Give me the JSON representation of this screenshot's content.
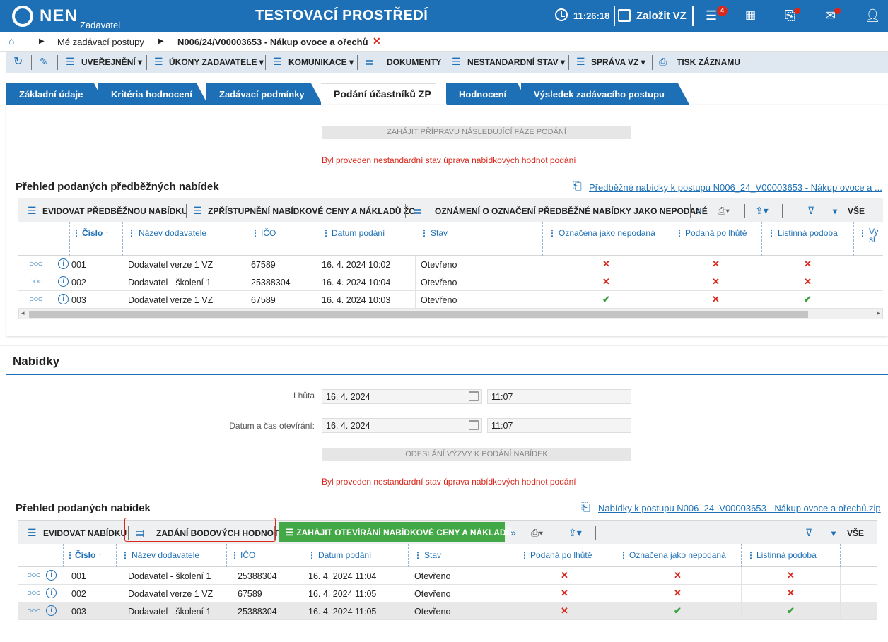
{
  "header": {
    "logo_text": "NEN",
    "logo_sub": "Zadavatel",
    "env_title": "TESTOVACÍ PROSTŘEDÍ",
    "time": "11:26:18",
    "create_label": "Založit VZ",
    "menu_badge": "4"
  },
  "breadcrumb": {
    "items": [
      "Mé zadávací postupy",
      "N006/24/V00003653 - Nákup ovoce a ořechů"
    ],
    "close": "✕"
  },
  "toolbar": {
    "items": [
      "UVEŘEJNĚNÍ",
      "ÚKONY ZADAVATELE",
      "KOMUNIKACE",
      "DOKUMENTY",
      "NESTANDARDNÍ STAV",
      "SPRÁVA VZ",
      "TISK ZÁZNAMU"
    ]
  },
  "tabs": [
    "Základní údaje",
    "Kritéria hodnocení",
    "Zadávací podmínky",
    "Podání účastníků ZP",
    "Hodnocení",
    "Výsledek zadávacího postupu"
  ],
  "prelim": {
    "next_phase_btn": "ZAHÁJIT PŘÍPRAVU NÁSLEDUJÍCÍ FÁZE PODÁNÍ",
    "warning": "Byl proveden nestandardní stav úprava nabídkových hodnot podání",
    "title": "Přehled podaných předběžných nabídek",
    "download_link": "Předběžné nabídky k postupu N006_24_V00003653 - Nákup ovoce a ...",
    "tools": [
      "EVIDOVAT PŘEDBĚŽNOU NABÍDKU",
      "ZPŘÍSTUPNĚNÍ NABÍDKOVÉ CENY A NÁKLADŮ ŽC",
      "OZNÁMENÍ O OZNAČENÍ PŘEDBĚŽNÉ NABÍDKY JAKO NEPODANÉ"
    ],
    "all_label": "VŠE",
    "columns": [
      "Číslo",
      "Název dodavatele",
      "IČO",
      "Datum podání",
      "Stav",
      "Označena jako nepodaná",
      "Podaná po lhůtě",
      "Listinná podoba",
      "Vy sl"
    ],
    "rows": [
      {
        "num": "001",
        "name": "Dodavatel verze 1 VZ",
        "ico": "67589",
        "date": "16. 4. 2024 10:02",
        "state": "Otevřeno",
        "flags": [
          false,
          false,
          false
        ]
      },
      {
        "num": "002",
        "name": "Dodavatel - školení 1",
        "ico": "25388304",
        "date": "16. 4. 2024 10:04",
        "state": "Otevřeno",
        "flags": [
          false,
          false,
          false
        ]
      },
      {
        "num": "003",
        "name": "Dodavatel verze 1 VZ",
        "ico": "67589",
        "date": "16. 4. 2024 10:03",
        "state": "Otevřeno",
        "flags": [
          true,
          false,
          true
        ]
      }
    ]
  },
  "offers": {
    "section_title": "Nabídky",
    "deadline_label": "Lhůta",
    "deadline_date": "16. 4. 2024",
    "deadline_time": "11:07",
    "open_label": "Datum a čas otevírání:",
    "open_date": "16. 4. 2024",
    "open_time": "11:07",
    "send_btn": "ODESLÁNÍ VÝZVY K PODÁNÍ NABÍDEK",
    "warning": "Byl proveden nestandardní stav úprava nabídkových hodnot podání",
    "title": "Přehled podaných nabídek",
    "download_link": "Nabídky k postupu N006_24_V00003653 - Nákup ovoce a ořechů.zip",
    "tools": [
      "EVIDOVAT NABÍDKU",
      "ZADÁNÍ BODOVÝCH HODNOT",
      "ZAHÁJIT OTEVÍRÁNÍ NABÍDKOVÉ CENY A NÁKLADŮ"
    ],
    "all_label": "VŠE",
    "columns": [
      "Číslo",
      "Název dodavatele",
      "IČO",
      "Datum podání",
      "Stav",
      "Podaná po lhůtě",
      "Označena jako nepodaná",
      "Listinná podoba"
    ],
    "rows": [
      {
        "num": "001",
        "name": "Dodavatel - školení 1",
        "ico": "25388304",
        "date": "16. 4. 2024 11:04",
        "state": "Otevřeno",
        "flags": [
          false,
          false,
          false
        ]
      },
      {
        "num": "002",
        "name": "Dodavatel verze 1 VZ",
        "ico": "67589",
        "date": "16. 4. 2024 11:05",
        "state": "Otevřeno",
        "flags": [
          false,
          false,
          false
        ]
      },
      {
        "num": "003",
        "name": "Dodavatel - školení 1",
        "ico": "25388304",
        "date": "16. 4. 2024 11:05",
        "state": "Otevřeno",
        "flags": [
          false,
          true,
          true
        ]
      }
    ]
  },
  "colors": {
    "brand": "#1e70b6",
    "error": "#d9281b",
    "success": "#38a03c",
    "green_btn": "#43a846"
  }
}
